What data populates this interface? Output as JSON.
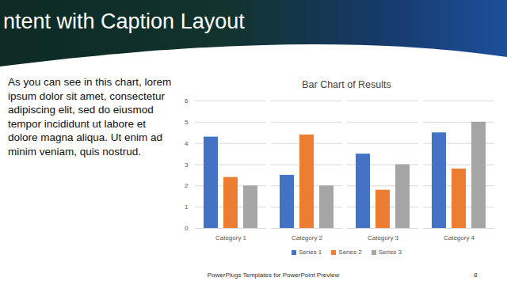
{
  "slide": {
    "title": "ntent with Caption Layout",
    "caption": "As you can see in this chart, lorem ipsum dolor sit amet, consectetur adipiscing elit, sed do eiusmod tempor incididunt ut labore et dolore magna aliqua. Ut enim ad minim veniam, quis nostrud.",
    "footer": "PowerPlugs Templates for PowerPoint  Preview",
    "page": 8
  },
  "chart_data": {
    "type": "bar",
    "title": "Bar Chart of Results",
    "categories": [
      "Category 1",
      "Category 2",
      "Category 3",
      "Category 4"
    ],
    "series": [
      {
        "name": "Series 1",
        "color": "#4472c4",
        "values": [
          4.3,
          2.5,
          3.5,
          4.5
        ]
      },
      {
        "name": "Series 2",
        "color": "#ed7d31",
        "values": [
          2.4,
          4.4,
          1.8,
          2.8
        ]
      },
      {
        "name": "Series 3",
        "color": "#a5a5a5",
        "values": [
          2,
          2,
          3,
          5
        ]
      }
    ],
    "ylim": [
      0,
      6
    ],
    "yticks": [
      0,
      1,
      2,
      3,
      4,
      5,
      6
    ],
    "grid": true,
    "legend": "bottom"
  }
}
